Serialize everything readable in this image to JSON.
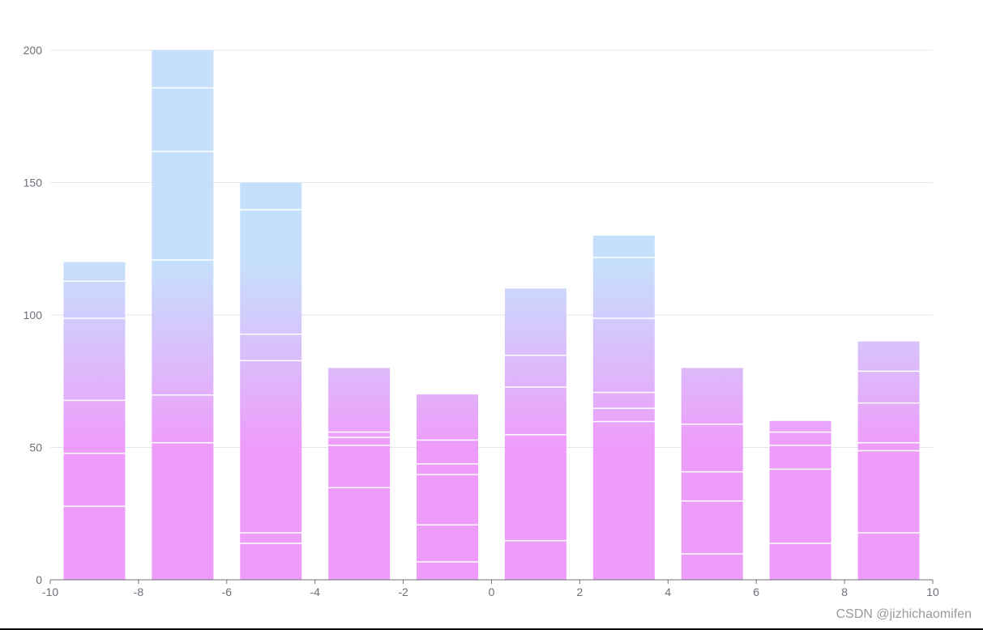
{
  "chart_data": {
    "type": "bar",
    "stacked": true,
    "x_axis": {
      "min": -10,
      "max": 10,
      "ticks": [
        -10,
        -8,
        -6,
        -4,
        -2,
        0,
        2,
        4,
        6,
        8,
        10
      ],
      "tick_labels": [
        "-10",
        "-8",
        "-6",
        "-4",
        "-2",
        "0",
        "2",
        "4",
        "6",
        "8",
        "10"
      ]
    },
    "y_axis": {
      "min": 0,
      "max": 200,
      "ticks": [
        0,
        50,
        100,
        150,
        200
      ],
      "tick_labels": [
        "0",
        "50",
        "100",
        "150",
        "200"
      ]
    },
    "grid": true,
    "colors": {
      "gradient_top": "#c6e0fc",
      "gradient_bottom": "#ee9cfa",
      "segment_gap": "#ffffff",
      "grid": "#e0e6f1",
      "axis": "#6e7079"
    },
    "bars": [
      {
        "x": -9,
        "segments": [
          28,
          20,
          20,
          31,
          14,
          7
        ]
      },
      {
        "x": -7,
        "segments": [
          52,
          18,
          51,
          41,
          24,
          14
        ]
      },
      {
        "x": -5,
        "segments": [
          14,
          4,
          65,
          10,
          47,
          10
        ]
      },
      {
        "x": -3,
        "segments": [
          35,
          16,
          3,
          2,
          24
        ]
      },
      {
        "x": -1,
        "segments": [
          7,
          14,
          19,
          4,
          9,
          17
        ]
      },
      {
        "x": 1,
        "segments": [
          15,
          40,
          18,
          12,
          25
        ]
      },
      {
        "x": 3,
        "segments": [
          60,
          5,
          6,
          28,
          23,
          8
        ]
      },
      {
        "x": 5,
        "segments": [
          10,
          20,
          11,
          18,
          21
        ]
      },
      {
        "x": 7,
        "segments": [
          14,
          28,
          9,
          5,
          4
        ]
      },
      {
        "x": 9,
        "segments": [
          18,
          31,
          3,
          15,
          12,
          11
        ]
      }
    ]
  },
  "watermark": "CSDN @jizhichaomifen"
}
